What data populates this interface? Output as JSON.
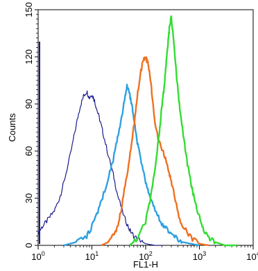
{
  "chart_data": {
    "type": "line",
    "title": "",
    "xlabel": "FL1-H",
    "ylabel": "Counts",
    "x_scale": "log",
    "xlim": [
      1,
      10000
    ],
    "ylim": [
      0,
      150
    ],
    "x_ticks": [
      {
        "value": 1,
        "base": "10",
        "exp": "0"
      },
      {
        "value": 10,
        "base": "10",
        "exp": "1"
      },
      {
        "value": 100,
        "base": "10",
        "exp": "2"
      },
      {
        "value": 1000,
        "base": "10",
        "exp": "3"
      },
      {
        "value": 10000,
        "base": "10",
        "exp": "4"
      }
    ],
    "y_ticks": [
      0,
      30,
      60,
      90,
      120,
      150
    ],
    "grid": false,
    "legend": "none",
    "series": [
      {
        "color": "#1a1a8c",
        "x": [
          1,
          1.2,
          1.5,
          2,
          2.5,
          3,
          4,
          5,
          6,
          7,
          8,
          9,
          10,
          11,
          12,
          14,
          16,
          20,
          25,
          30,
          40,
          50,
          60,
          80,
          100,
          150,
          200
        ],
        "y": [
          8,
          12,
          16,
          22,
          30,
          40,
          58,
          75,
          88,
          95,
          98,
          94,
          96,
          93,
          88,
          80,
          72,
          58,
          45,
          32,
          18,
          10,
          6,
          3,
          1,
          0,
          0
        ]
      },
      {
        "color": "#2fa0e0",
        "x": [
          3,
          5,
          8,
          10,
          12,
          15,
          20,
          25,
          30,
          35,
          40,
          45,
          50,
          55,
          60,
          70,
          80,
          100,
          120,
          150,
          200,
          250,
          300,
          400,
          500,
          700,
          1000
        ],
        "y": [
          0,
          2,
          6,
          12,
          18,
          28,
          42,
          55,
          68,
          80,
          92,
          101,
          97,
          90,
          82,
          66,
          55,
          40,
          30,
          22,
          14,
          10,
          7,
          4,
          2,
          1,
          0
        ]
      },
      {
        "color": "#f07020",
        "x": [
          15,
          20,
          25,
          30,
          35,
          40,
          50,
          60,
          70,
          80,
          90,
          100,
          110,
          120,
          130,
          150,
          170,
          200,
          230,
          260,
          300,
          350,
          400,
          500,
          700,
          1000,
          1500
        ],
        "y": [
          0,
          2,
          6,
          12,
          22,
          35,
          55,
          75,
          95,
          110,
          117,
          120,
          116,
          108,
          98,
          78,
          68,
          62,
          56,
          50,
          40,
          30,
          20,
          12,
          5,
          1,
          0
        ]
      },
      {
        "color": "#33dd33",
        "x": [
          50,
          70,
          100,
          120,
          150,
          180,
          200,
          220,
          240,
          260,
          280,
          300,
          330,
          360,
          400,
          450,
          500,
          600,
          700,
          800,
          1000,
          1200,
          1500,
          2000,
          3000,
          5000
        ],
        "y": [
          0,
          4,
          15,
          28,
          50,
          72,
          88,
          100,
          115,
          128,
          140,
          146,
          132,
          115,
          98,
          82,
          70,
          52,
          40,
          30,
          18,
          10,
          5,
          2,
          0,
          0
        ]
      }
    ]
  }
}
